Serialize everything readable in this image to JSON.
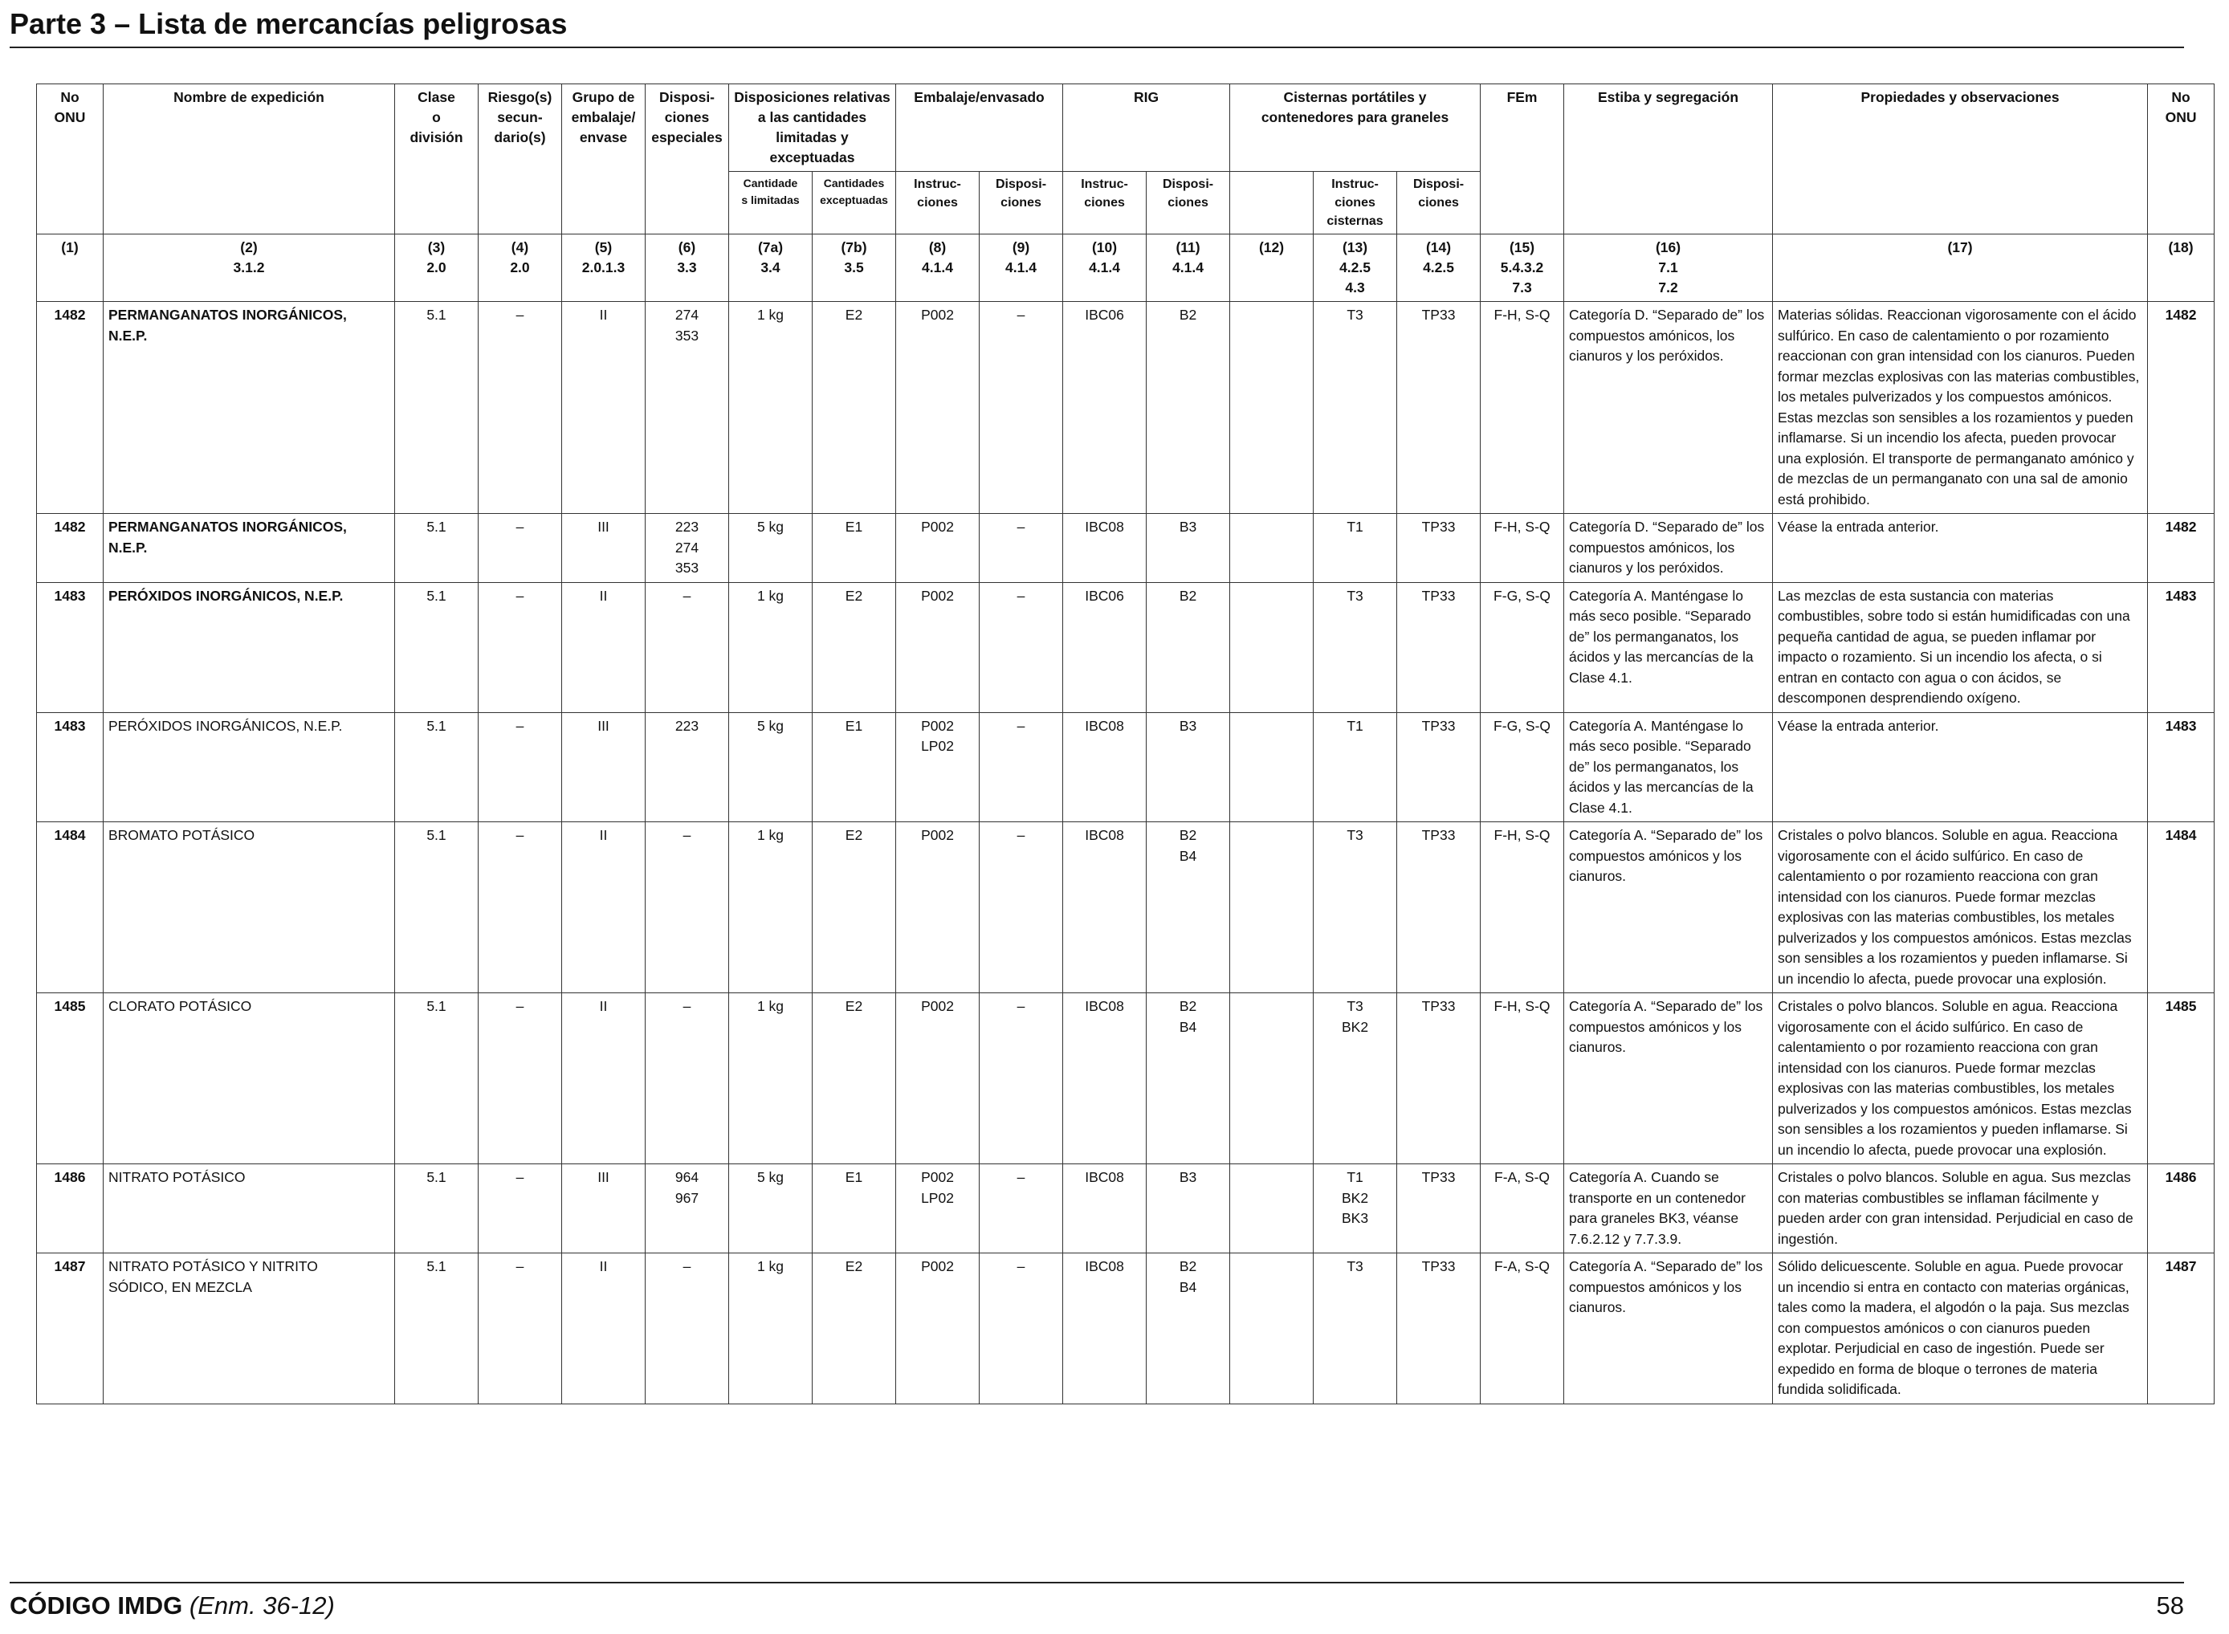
{
  "page": {
    "title": "Parte 3 – Lista de mercancías peligrosas",
    "footer_title": "CÓDIGO IMDG",
    "footer_edition": "(Enm. 36-12)",
    "page_number": "58"
  },
  "headers": {
    "no_onu": "No\nONU",
    "nombre": "Nombre de expedición",
    "clase": "Clase\no\ndivisión",
    "riesgo": "Riesgo(s)\nsecun-\ndario(s)",
    "grupo": "Grupo de\nembalaje/\nenvase",
    "disp_esp": "Disposi-\nciones\nespeciales",
    "disp_cant": "Disposiciones relativas\na las cantidades\nlimitadas y exceptuadas",
    "embalaje": "Embalaje/envasado",
    "rig": "RIG",
    "cisternas": "Cisternas portátiles y\ncontenedores para graneles",
    "fem": "FEm",
    "estiba": "Estiba y segregación",
    "propiedades": "Propiedades y observaciones",
    "no_onu_end": "No\nONU",
    "cant_lim": "Cantidade\ns limitadas",
    "cant_exc": "Cantidades\nexceptuadas",
    "emb_instr": "Instruc-\nciones",
    "emb_disp": "Disposi-\nciones",
    "rig_instr": "Instruc-\nciones",
    "rig_disp": "Disposi-\nciones",
    "cis_instr": "Instruc-\nciones\ncisternas",
    "cis_disp": "Disposi-\nciones"
  },
  "column_numbers": [
    "(1)",
    "(2)\n3.1.2",
    "(3)\n2.0",
    "(4)\n2.0",
    "(5)\n2.0.1.3",
    "(6)\n3.3",
    "(7a)\n3.4",
    "(7b)\n3.5",
    "(8)\n4.1.4",
    "(9)\n4.1.4",
    "(10)\n4.1.4",
    "(11)\n4.1.4",
    "(12)",
    "(13)\n4.2.5\n4.3",
    "(14)\n4.2.5",
    "(15)\n5.4.3.2\n7.3",
    "(16)\n7.1\n7.2",
    "(17)",
    "(18)"
  ],
  "rows": [
    {
      "un": "1482",
      "name": "PERMANGANATOS INORGÁNICOS,\nN.E.P.",
      "clase": "5.1",
      "riesgo": "–",
      "grupo": "II",
      "disp_esp": "274\n353",
      "cant_lim": "1 kg",
      "cant_exc": "E2",
      "emb_instr": "P002",
      "emb_disp": "–",
      "rig_instr": "IBC06",
      "rig_disp": "B2",
      "col12": "",
      "cis_instr": "T3",
      "cis_disp": "TP33",
      "fem": "F-H, S-Q",
      "estiba": "Categoría D. “Separado de” los compuestos amónicos, los cianuros y los peróxidos.",
      "propiedades": "Materias sólidas. Reaccionan vigorosamente con el ácido sulfúrico. En caso de calentamiento o por rozamiento reaccionan con gran intensidad con los cianuros. Pueden formar mezclas explosivas con las materias combustibles, los metales pulverizados y los compuestos amónicos. Estas mezclas son sensibles a los rozamientos y pueden inflamarse. Si un incendio los afecta, pueden provocar una explosión. El transporte de permanganato amónico y de mezclas de un permanganato con una sal de amonio está prohibido.",
      "un_end": "1482"
    },
    {
      "un": "1482",
      "name": "PERMANGANATOS INORGÁNICOS,\nN.E.P.",
      "clase": "5.1",
      "riesgo": "–",
      "grupo": "III",
      "disp_esp": "223\n274\n353",
      "cant_lim": "5 kg",
      "cant_exc": "E1",
      "emb_instr": "P002",
      "emb_disp": "–",
      "rig_instr": "IBC08",
      "rig_disp": "B3",
      "col12": "",
      "cis_instr": "T1",
      "cis_disp": "TP33",
      "fem": "F-H, S-Q",
      "estiba": "Categoría D. “Separado de” los compuestos amónicos, los cianuros y los peróxidos.",
      "propiedades": "Véase la entrada anterior.",
      "un_end": "1482"
    },
    {
      "un": "1483",
      "name": "PERÓXIDOS INORGÁNICOS, N.E.P.",
      "clase": "5.1",
      "riesgo": "–",
      "grupo": "II",
      "disp_esp": "–",
      "cant_lim": "1 kg",
      "cant_exc": "E2",
      "emb_instr": "P002",
      "emb_disp": "–",
      "rig_instr": "IBC06",
      "rig_disp": "B2",
      "col12": "",
      "cis_instr": "T3",
      "cis_disp": "TP33",
      "fem": "F-G, S-Q",
      "estiba": "Categoría A. Manténgase lo más seco posible. “Separado de” los permanganatos, los ácidos y las mercancías de la Clase 4.1.",
      "propiedades": "Las mezclas de esta sustancia con materias combustibles, sobre todo si están humidificadas con una pequeña cantidad de agua, se pueden inflamar por impacto o rozamiento. Si un incendio los afecta, o si entran en contacto con agua o con ácidos, se descomponen desprendiendo oxígeno.",
      "un_end": "1483"
    },
    {
      "un": "1483",
      "name": "PERÓXIDOS INORGÁNICOS, N.E.P.",
      "clase": "5.1",
      "riesgo": "–",
      "grupo": "III",
      "disp_esp": "223",
      "cant_lim": "5 kg",
      "cant_exc": "E1",
      "emb_instr": "P002\nLP02",
      "emb_disp": "–",
      "rig_instr": "IBC08",
      "rig_disp": "B3",
      "col12": "",
      "cis_instr": "T1",
      "cis_disp": "TP33",
      "fem": "F-G, S-Q",
      "estiba": "Categoría A. Manténgase lo más seco posible. “Separado de” los permanganatos, los ácidos y las mercancías de la Clase 4.1.",
      "propiedades": "Véase la entrada anterior.",
      "un_end": "1483"
    },
    {
      "un": "1484",
      "name": "BROMATO POTÁSICO",
      "clase": "5.1",
      "riesgo": "–",
      "grupo": "II",
      "disp_esp": "–",
      "cant_lim": "1 kg",
      "cant_exc": "E2",
      "emb_instr": "P002",
      "emb_disp": "–",
      "rig_instr": "IBC08",
      "rig_disp": "B2\nB4",
      "col12": "",
      "cis_instr": "T3",
      "cis_disp": "TP33",
      "fem": "F-H, S-Q",
      "estiba": "Categoría A. “Separado de” los compuestos amónicos y los cianuros.",
      "propiedades": "Cristales o polvo blancos. Soluble en agua. Reacciona vigorosamente con el ácido sulfúrico. En caso de calentamiento o por rozamiento reacciona con gran intensidad con los cianuros. Puede formar mezclas explosivas con las materias combustibles, los metales pulverizados y los compuestos amónicos. Estas mezclas son sensibles a los rozamientos y pueden inflamarse. Si un incendio lo afecta, puede provocar una explosión.",
      "un_end": "1484"
    },
    {
      "un": "1485",
      "name": "CLORATO POTÁSICO",
      "clase": "5.1",
      "riesgo": "–",
      "grupo": "II",
      "disp_esp": "–",
      "cant_lim": "1 kg",
      "cant_exc": "E2",
      "emb_instr": "P002",
      "emb_disp": "–",
      "rig_instr": "IBC08",
      "rig_disp": "B2\nB4",
      "col12": "",
      "cis_instr": "T3\nBK2",
      "cis_disp": "TP33",
      "fem": "F-H, S-Q",
      "estiba": "Categoría A. “Separado de” los compuestos amónicos y los cianuros.",
      "propiedades": "Cristales o polvo blancos. Soluble en agua. Reacciona vigorosamente con el ácido sulfúrico. En caso de calentamiento o por rozamiento reacciona con gran intensidad con los cianuros. Puede formar mezclas explosivas con las materias combustibles, los metales pulverizados y los compuestos amónicos. Estas mezclas son sensibles a los rozamientos y pueden inflamarse. Si un incendio lo afecta, puede provocar una explosión.",
      "un_end": "1485"
    },
    {
      "un": "1486",
      "name": "NITRATO POTÁSICO",
      "clase": "5.1",
      "riesgo": "–",
      "grupo": "III",
      "disp_esp": "964\n967",
      "cant_lim": "5 kg",
      "cant_exc": "E1",
      "emb_instr": "P002\nLP02",
      "emb_disp": "–",
      "rig_instr": "IBC08",
      "rig_disp": "B3",
      "col12": "",
      "cis_instr": "T1\nBK2\nBK3",
      "cis_disp": "TP33",
      "fem": "F-A, S-Q",
      "estiba": "Categoría A. Cuando se transporte en un contenedor para graneles BK3, véanse 7.6.2.12 y 7.7.3.9.",
      "propiedades": "Cristales o polvo blancos. Soluble en agua. Sus mezclas con materias combustibles se inflaman fácilmente y pueden arder con gran intensidad. Perjudicial en caso de ingestión.",
      "un_end": "1486"
    },
    {
      "un": "1487",
      "name": "NITRATO POTÁSICO Y NITRITO\nSÓDICO, EN MEZCLA",
      "clase": "5.1",
      "riesgo": "–",
      "grupo": "II",
      "disp_esp": "–",
      "cant_lim": "1 kg",
      "cant_exc": "E2",
      "emb_instr": "P002",
      "emb_disp": "–",
      "rig_instr": "IBC08",
      "rig_disp": "B2\nB4",
      "col12": "",
      "cis_instr": "T3",
      "cis_disp": "TP33",
      "fem": "F-A, S-Q",
      "estiba": "Categoría A. “Separado de” los compuestos amónicos y los cianuros.",
      "propiedades": "Sólido delicuescente. Soluble en agua. Puede provocar un incendio si entra en contacto con materias orgánicas, tales como la madera, el algodón o la paja. Sus mezclas con compuestos amónicos o con cianuros pueden explotar. Perjudicial en caso de ingestión. Puede ser expedido en forma de bloque o terrones de materia fundida solidificada.",
      "un_end": "1487"
    }
  ]
}
